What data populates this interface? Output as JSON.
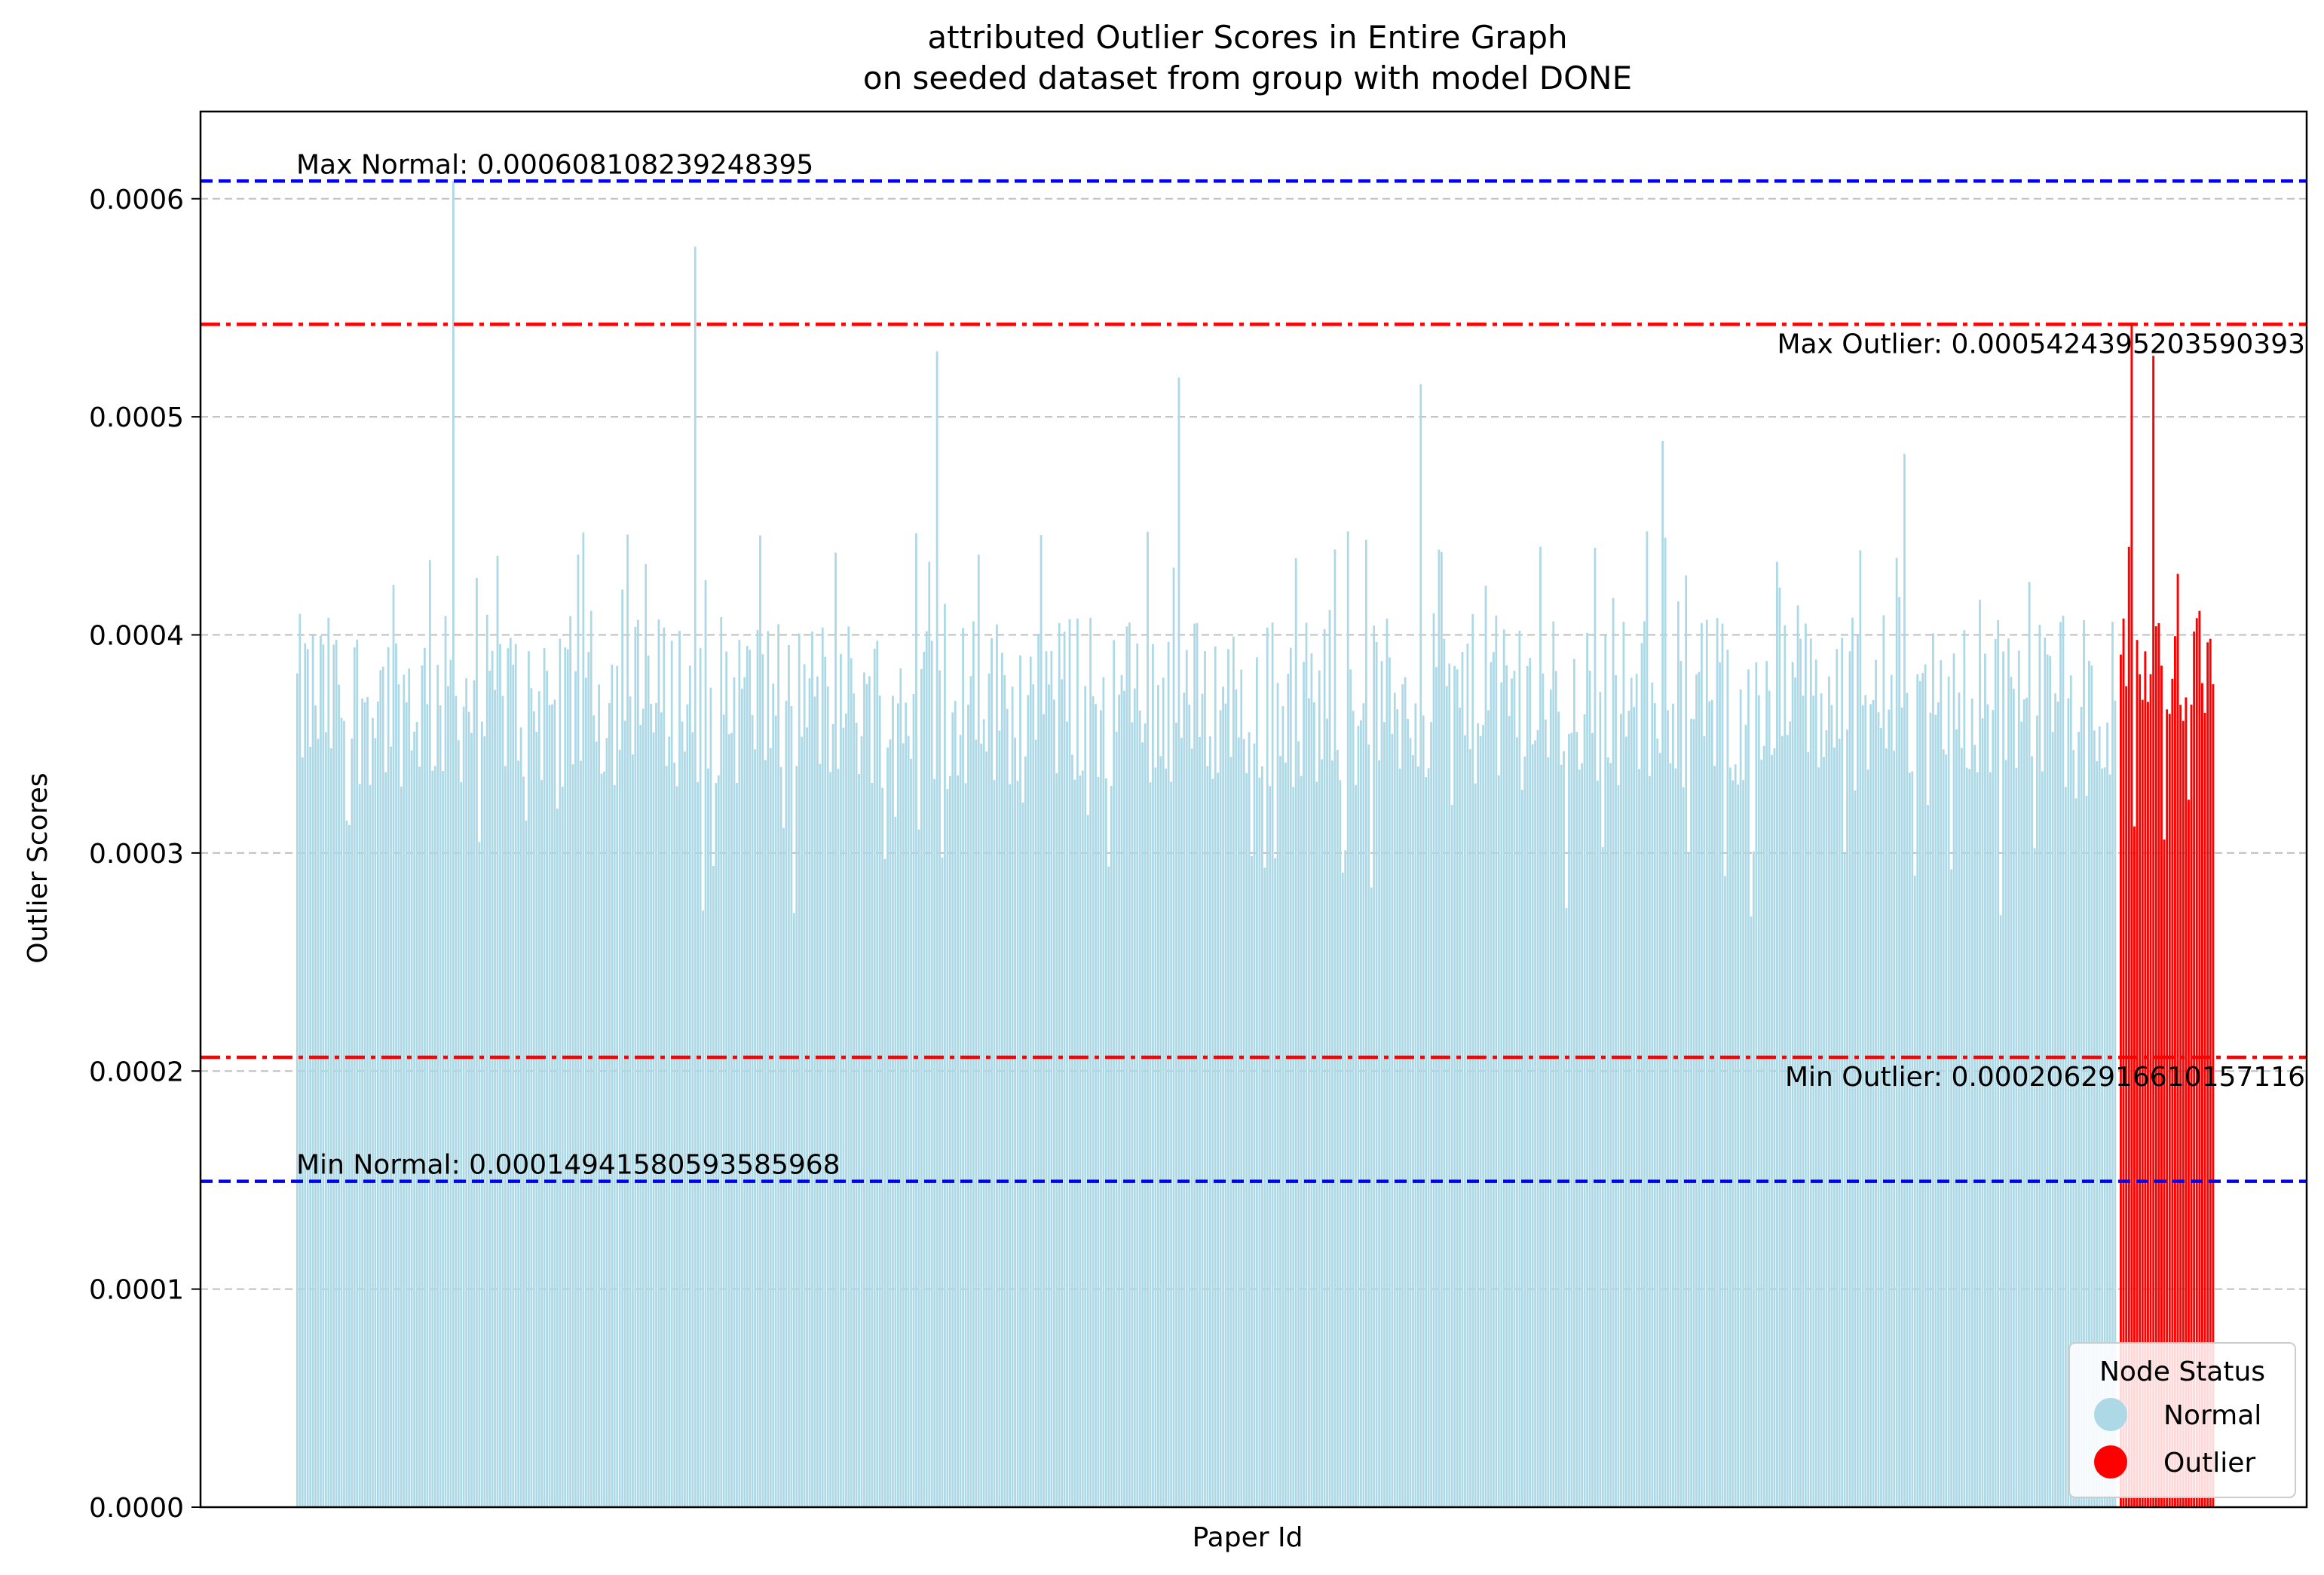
{
  "chart_data": {
    "type": "bar",
    "title": "attributed Outlier Scores in Entire Graph",
    "subtitle": "on seeded dataset from group with model DONE",
    "xlabel": "Paper Id",
    "ylabel": "Outlier Scores",
    "ylim": [
      0,
      0.00064
    ],
    "y_ticks": [
      "0.0000",
      "0.0001",
      "0.0002",
      "0.0003",
      "0.0004",
      "0.0005",
      "0.0006"
    ],
    "grid": "horizontal dashed",
    "series": [
      {
        "name": "Normal",
        "color": "#add8e6",
        "count": 700,
        "typical_range": [
          0.00033,
          0.00041
        ],
        "values_sample_peaks": [
          0.000608,
          0.000578,
          0.00053,
          0.000518,
          0.000515,
          0.000489,
          0.000483
        ]
      },
      {
        "name": "Outlier",
        "color": "#ff0000",
        "count": 35,
        "typical_range": [
          0.00036,
          0.00041
        ],
        "values_sample_peaks": [
          0.000542,
          0.000528,
          0.000428,
          0.000411
        ]
      }
    ],
    "reference_lines": [
      {
        "label": "Max Normal: 0.000608108239248395",
        "value": 0.000608108239248395,
        "color": "#0000ff",
        "style": "dashed",
        "label_anchor": "left-above"
      },
      {
        "label": "Max Outlier: 0.0005424395203590393",
        "value": 0.0005424395203590393,
        "color": "#ff0000",
        "style": "dashdot",
        "label_anchor": "right-below"
      },
      {
        "label": "Min Outlier: 0.0002062916610157116",
        "value": 0.0002062916610157116,
        "color": "#ff0000",
        "style": "dashdot",
        "label_anchor": "right-below"
      },
      {
        "label": "Min Normal: 0.00014941580593585968",
        "value": 0.00014941580593585968,
        "color": "#0000ff",
        "style": "dashed",
        "label_anchor": "left-above"
      }
    ],
    "legend": {
      "title": "Node Status",
      "placement": "lower right",
      "entries": [
        {
          "label": "Normal",
          "color": "#add8e6"
        },
        {
          "label": "Outlier",
          "color": "#ff0000"
        }
      ]
    }
  }
}
